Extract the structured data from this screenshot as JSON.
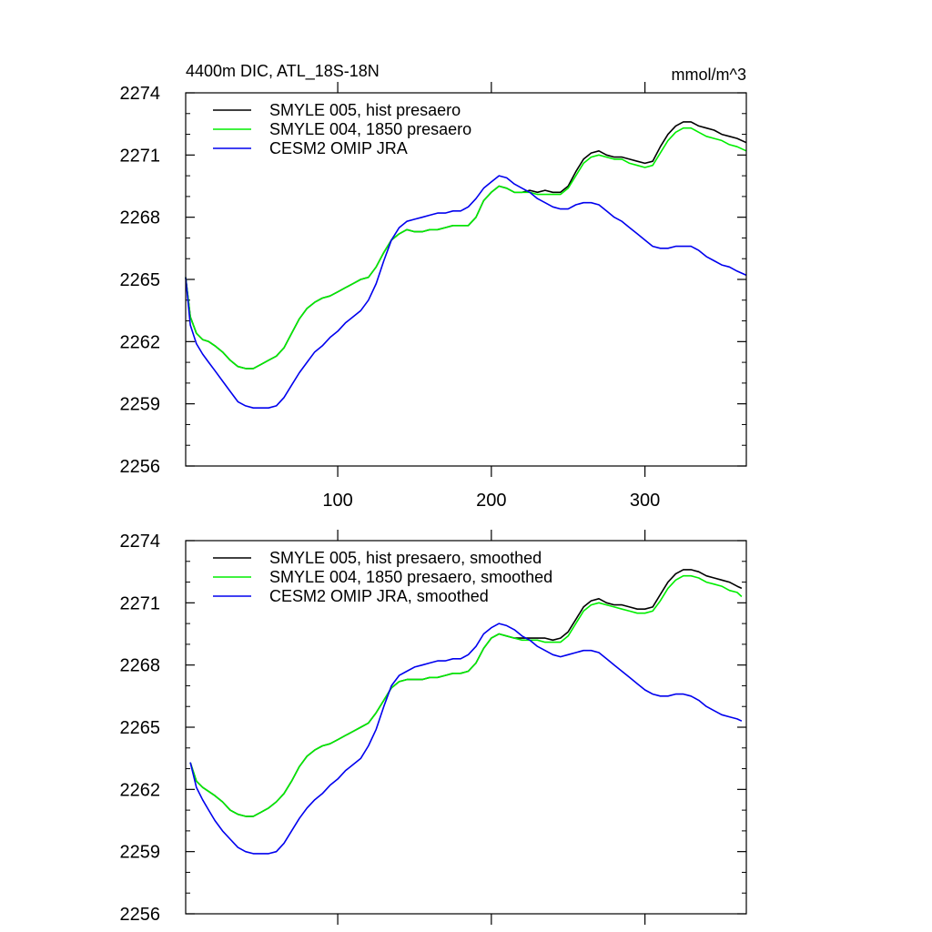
{
  "chart_data": [
    {
      "type": "line",
      "title": "4400m DIC, ATL_18S-18N",
      "units": "mmol/m^3",
      "xlim": [
        1,
        366
      ],
      "ylim": [
        2256,
        2274
      ],
      "xticks": [
        100,
        200,
        300
      ],
      "xtick_labels": [
        "100",
        "200",
        "300"
      ],
      "yticks": [
        2256,
        2259,
        2262,
        2265,
        2268,
        2271,
        2274
      ],
      "ytick_labels": [
        "2256",
        "2259",
        "2262",
        "2265",
        "2268",
        "2271",
        "2274"
      ],
      "grid": false,
      "legend_position": "top-left",
      "series": [
        {
          "name": "SMYLE 005, hist presaero",
          "color": "#000000",
          "x": [
            1,
            4,
            8,
            12,
            16,
            20,
            25,
            30,
            35,
            40,
            45,
            50,
            55,
            60,
            65,
            70,
            75,
            80,
            85,
            90,
            95,
            100,
            105,
            110,
            115,
            120,
            125,
            130,
            135,
            140,
            145,
            150,
            155,
            160,
            165,
            170,
            175,
            180,
            185,
            190,
            195,
            200,
            205,
            210,
            215,
            220,
            225,
            230,
            235,
            240,
            245,
            250,
            255,
            260,
            265,
            270,
            275,
            280,
            285,
            290,
            295,
            300,
            305,
            310,
            315,
            320,
            325,
            330,
            335,
            340,
            345,
            350,
            355,
            360,
            366
          ],
          "y": [
            2265.1,
            2263.2,
            2262.4,
            2262.1,
            2262.0,
            2261.8,
            2261.5,
            2261.1,
            2260.8,
            2260.7,
            2260.7,
            2260.9,
            2261.1,
            2261.3,
            2261.7,
            2262.4,
            2263.1,
            2263.6,
            2263.9,
            2264.1,
            2264.2,
            2264.4,
            2264.6,
            2264.8,
            2265.0,
            2265.1,
            2265.6,
            2266.3,
            2266.9,
            2267.2,
            2267.4,
            2267.3,
            2267.3,
            2267.4,
            2267.4,
            2267.5,
            2267.6,
            2267.6,
            2267.6,
            2268.0,
            2268.8,
            2269.2,
            2269.5,
            2269.4,
            2269.2,
            2269.2,
            2269.3,
            2269.2,
            2269.3,
            2269.2,
            2269.2,
            2269.5,
            2270.2,
            2270.8,
            2271.1,
            2271.2,
            2271.0,
            2270.9,
            2270.9,
            2270.8,
            2270.7,
            2270.6,
            2270.7,
            2271.4,
            2272.0,
            2272.4,
            2272.6,
            2272.6,
            2272.4,
            2272.3,
            2272.2,
            2272.0,
            2271.9,
            2271.8,
            2271.6
          ]
        },
        {
          "name": "SMYLE 004, 1850 presaero",
          "color": "#00ee00",
          "x": [
            1,
            4,
            8,
            12,
            16,
            20,
            25,
            30,
            35,
            40,
            45,
            50,
            55,
            60,
            65,
            70,
            75,
            80,
            85,
            90,
            95,
            100,
            105,
            110,
            115,
            120,
            125,
            130,
            135,
            140,
            145,
            150,
            155,
            160,
            165,
            170,
            175,
            180,
            185,
            190,
            195,
            200,
            205,
            210,
            215,
            220,
            225,
            230,
            235,
            240,
            245,
            250,
            255,
            260,
            265,
            270,
            275,
            280,
            285,
            290,
            295,
            300,
            305,
            310,
            315,
            320,
            325,
            330,
            335,
            340,
            345,
            350,
            355,
            360,
            366
          ],
          "y": [
            2265.1,
            2263.2,
            2262.4,
            2262.1,
            2262.0,
            2261.8,
            2261.5,
            2261.1,
            2260.8,
            2260.7,
            2260.7,
            2260.9,
            2261.1,
            2261.3,
            2261.7,
            2262.4,
            2263.1,
            2263.6,
            2263.9,
            2264.1,
            2264.2,
            2264.4,
            2264.6,
            2264.8,
            2265.0,
            2265.1,
            2265.6,
            2266.3,
            2266.9,
            2267.2,
            2267.4,
            2267.3,
            2267.3,
            2267.4,
            2267.4,
            2267.5,
            2267.6,
            2267.6,
            2267.6,
            2268.0,
            2268.8,
            2269.2,
            2269.5,
            2269.4,
            2269.2,
            2269.2,
            2269.2,
            2269.1,
            2269.1,
            2269.1,
            2269.1,
            2269.4,
            2270.0,
            2270.6,
            2270.9,
            2271.0,
            2270.9,
            2270.8,
            2270.8,
            2270.6,
            2270.5,
            2270.4,
            2270.5,
            2271.1,
            2271.7,
            2272.1,
            2272.3,
            2272.3,
            2272.1,
            2271.9,
            2271.8,
            2271.7,
            2271.5,
            2271.4,
            2271.2
          ]
        },
        {
          "name": "CESM2 OMIP JRA",
          "color": "#0000ee",
          "x": [
            1,
            4,
            8,
            12,
            16,
            20,
            25,
            30,
            35,
            40,
            45,
            50,
            55,
            60,
            65,
            70,
            75,
            80,
            85,
            90,
            95,
            100,
            105,
            110,
            115,
            120,
            125,
            130,
            135,
            140,
            145,
            150,
            155,
            160,
            165,
            170,
            175,
            180,
            185,
            190,
            195,
            200,
            205,
            210,
            215,
            220,
            225,
            230,
            235,
            240,
            245,
            250,
            255,
            260,
            265,
            270,
            275,
            280,
            285,
            290,
            295,
            300,
            305,
            310,
            315,
            320,
            325,
            330,
            335,
            340,
            345,
            350,
            355,
            360,
            366
          ],
          "y": [
            2265.1,
            2262.8,
            2261.9,
            2261.4,
            2261.0,
            2260.6,
            2260.1,
            2259.6,
            2259.1,
            2258.9,
            2258.8,
            2258.8,
            2258.8,
            2258.9,
            2259.3,
            2259.9,
            2260.5,
            2261.0,
            2261.5,
            2261.8,
            2262.2,
            2262.5,
            2262.9,
            2263.2,
            2263.5,
            2264.0,
            2264.8,
            2265.9,
            2266.9,
            2267.5,
            2267.8,
            2267.9,
            2268.0,
            2268.1,
            2268.2,
            2268.2,
            2268.3,
            2268.3,
            2268.5,
            2268.9,
            2269.4,
            2269.7,
            2270.0,
            2269.9,
            2269.6,
            2269.4,
            2269.2,
            2268.9,
            2268.7,
            2268.5,
            2268.4,
            2268.4,
            2268.6,
            2268.7,
            2268.7,
            2268.6,
            2268.3,
            2268.0,
            2267.8,
            2267.5,
            2267.2,
            2266.9,
            2266.6,
            2266.5,
            2266.5,
            2266.6,
            2266.6,
            2266.6,
            2266.4,
            2266.1,
            2265.9,
            2265.7,
            2265.6,
            2265.4,
            2265.2
          ]
        }
      ]
    },
    {
      "type": "line",
      "title": "",
      "xlim": [
        1,
        366
      ],
      "ylim": [
        2256,
        2274
      ],
      "xticks": [
        100,
        200,
        300
      ],
      "xtick_labels": [],
      "yticks": [
        2256,
        2259,
        2262,
        2265,
        2268,
        2271,
        2274
      ],
      "ytick_labels": [
        "2256",
        "2259",
        "2262",
        "2265",
        "2268",
        "2271",
        "2274"
      ],
      "grid": false,
      "legend_position": "top-left",
      "series": [
        {
          "name": "SMYLE 005, hist presaero, smoothed",
          "color": "#000000",
          "x": [
            4,
            8,
            12,
            16,
            20,
            25,
            30,
            35,
            40,
            45,
            50,
            55,
            60,
            65,
            70,
            75,
            80,
            85,
            90,
            95,
            100,
            105,
            110,
            115,
            120,
            125,
            130,
            135,
            140,
            145,
            150,
            155,
            160,
            165,
            170,
            175,
            180,
            185,
            190,
            195,
            200,
            205,
            210,
            215,
            220,
            225,
            230,
            235,
            240,
            245,
            250,
            255,
            260,
            265,
            270,
            275,
            280,
            285,
            290,
            295,
            300,
            305,
            310,
            315,
            320,
            325,
            330,
            335,
            340,
            345,
            350,
            355,
            360,
            363
          ],
          "y": [
            2263.3,
            2262.4,
            2262.1,
            2261.9,
            2261.7,
            2261.4,
            2261.0,
            2260.8,
            2260.7,
            2260.7,
            2260.9,
            2261.1,
            2261.4,
            2261.8,
            2262.4,
            2263.1,
            2263.6,
            2263.9,
            2264.1,
            2264.2,
            2264.4,
            2264.6,
            2264.8,
            2265.0,
            2265.2,
            2265.7,
            2266.3,
            2266.9,
            2267.2,
            2267.3,
            2267.3,
            2267.3,
            2267.4,
            2267.4,
            2267.5,
            2267.6,
            2267.6,
            2267.7,
            2268.1,
            2268.8,
            2269.3,
            2269.5,
            2269.4,
            2269.3,
            2269.3,
            2269.3,
            2269.3,
            2269.3,
            2269.2,
            2269.3,
            2269.6,
            2270.2,
            2270.8,
            2271.1,
            2271.2,
            2271.0,
            2270.9,
            2270.9,
            2270.8,
            2270.7,
            2270.7,
            2270.8,
            2271.4,
            2272.0,
            2272.4,
            2272.6,
            2272.6,
            2272.5,
            2272.3,
            2272.2,
            2272.1,
            2272.0,
            2271.8,
            2271.7
          ]
        },
        {
          "name": "SMYLE 004, 1850 presaero, smoothed",
          "color": "#00ee00",
          "x": [
            4,
            8,
            12,
            16,
            20,
            25,
            30,
            35,
            40,
            45,
            50,
            55,
            60,
            65,
            70,
            75,
            80,
            85,
            90,
            95,
            100,
            105,
            110,
            115,
            120,
            125,
            130,
            135,
            140,
            145,
            150,
            155,
            160,
            165,
            170,
            175,
            180,
            185,
            190,
            195,
            200,
            205,
            210,
            215,
            220,
            225,
            230,
            235,
            240,
            245,
            250,
            255,
            260,
            265,
            270,
            275,
            280,
            285,
            290,
            295,
            300,
            305,
            310,
            315,
            320,
            325,
            330,
            335,
            340,
            345,
            350,
            355,
            360,
            363
          ],
          "y": [
            2263.3,
            2262.4,
            2262.1,
            2261.9,
            2261.7,
            2261.4,
            2261.0,
            2260.8,
            2260.7,
            2260.7,
            2260.9,
            2261.1,
            2261.4,
            2261.8,
            2262.4,
            2263.1,
            2263.6,
            2263.9,
            2264.1,
            2264.2,
            2264.4,
            2264.6,
            2264.8,
            2265.0,
            2265.2,
            2265.7,
            2266.3,
            2266.9,
            2267.2,
            2267.3,
            2267.3,
            2267.3,
            2267.4,
            2267.4,
            2267.5,
            2267.6,
            2267.6,
            2267.7,
            2268.1,
            2268.8,
            2269.3,
            2269.5,
            2269.4,
            2269.3,
            2269.2,
            2269.2,
            2269.2,
            2269.1,
            2269.1,
            2269.1,
            2269.4,
            2270.0,
            2270.6,
            2270.9,
            2271.0,
            2270.9,
            2270.8,
            2270.7,
            2270.6,
            2270.5,
            2270.5,
            2270.6,
            2271.1,
            2271.7,
            2272.1,
            2272.3,
            2272.3,
            2272.2,
            2272.0,
            2271.9,
            2271.8,
            2271.6,
            2271.5,
            2271.3
          ]
        },
        {
          "name": "CESM2 OMIP JRA, smoothed",
          "color": "#0000ee",
          "x": [
            4,
            8,
            12,
            16,
            20,
            25,
            30,
            35,
            40,
            45,
            50,
            55,
            60,
            65,
            70,
            75,
            80,
            85,
            90,
            95,
            100,
            105,
            110,
            115,
            120,
            125,
            130,
            135,
            140,
            145,
            150,
            155,
            160,
            165,
            170,
            175,
            180,
            185,
            190,
            195,
            200,
            205,
            210,
            215,
            220,
            225,
            230,
            235,
            240,
            245,
            250,
            255,
            260,
            265,
            270,
            275,
            280,
            285,
            290,
            295,
            300,
            305,
            310,
            315,
            320,
            325,
            330,
            335,
            340,
            345,
            350,
            355,
            360,
            363
          ],
          "y": [
            2263.3,
            2262.1,
            2261.5,
            2261.0,
            2260.5,
            2260.0,
            2259.6,
            2259.2,
            2259.0,
            2258.9,
            2258.9,
            2258.9,
            2259.0,
            2259.4,
            2260.0,
            2260.6,
            2261.1,
            2261.5,
            2261.8,
            2262.2,
            2262.5,
            2262.9,
            2263.2,
            2263.5,
            2264.1,
            2264.9,
            2266.0,
            2267.0,
            2267.5,
            2267.7,
            2267.9,
            2268.0,
            2268.1,
            2268.2,
            2268.2,
            2268.3,
            2268.3,
            2268.5,
            2268.9,
            2269.5,
            2269.8,
            2270.0,
            2269.9,
            2269.7,
            2269.4,
            2269.2,
            2268.9,
            2268.7,
            2268.5,
            2268.4,
            2268.5,
            2268.6,
            2268.7,
            2268.7,
            2268.6,
            2268.3,
            2268.0,
            2267.7,
            2267.4,
            2267.1,
            2266.8,
            2266.6,
            2266.5,
            2266.5,
            2266.6,
            2266.6,
            2266.5,
            2266.3,
            2266.0,
            2265.8,
            2265.6,
            2265.5,
            2265.4,
            2265.3
          ]
        }
      ]
    }
  ]
}
